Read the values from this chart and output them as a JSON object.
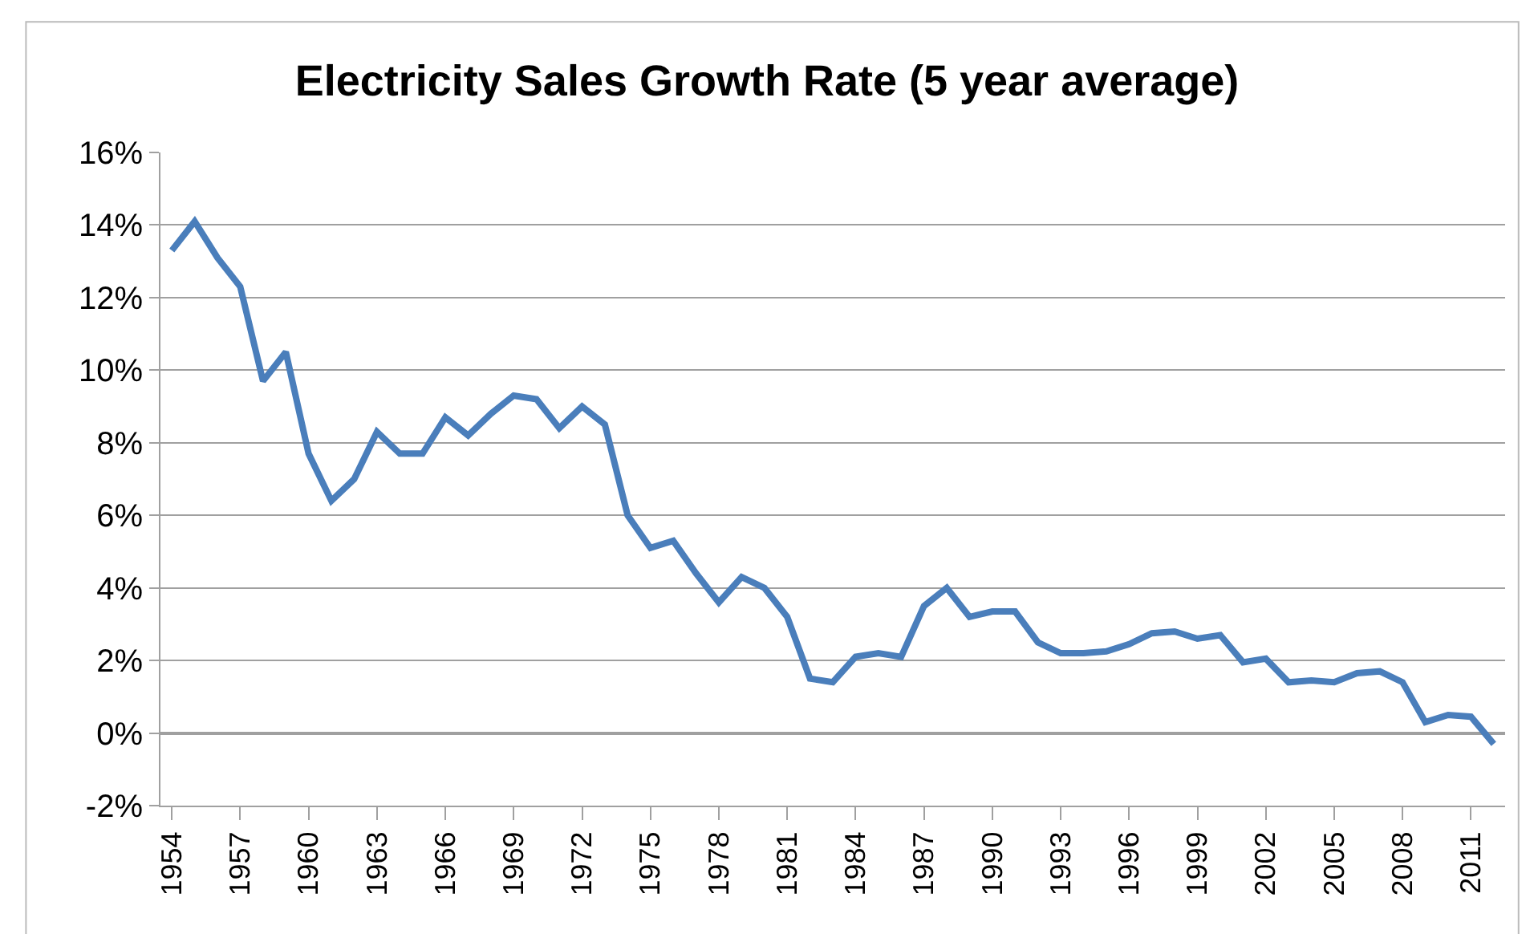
{
  "chart_data": {
    "type": "line",
    "title": "Electricity Sales Growth Rate (5 year average)",
    "categories": [
      "1954",
      null,
      null,
      "1957",
      null,
      null,
      "1960",
      null,
      null,
      "1963",
      null,
      null,
      "1966",
      null,
      null,
      "1969",
      null,
      null,
      "1972",
      null,
      null,
      "1975",
      null,
      null,
      "1978",
      null,
      null,
      "1981",
      null,
      null,
      "1984",
      null,
      null,
      "1987",
      null,
      null,
      "1990",
      null,
      null,
      "1993",
      null,
      null,
      "1996",
      null,
      null,
      "1999",
      null,
      null,
      "2002",
      null,
      null,
      "2005",
      null,
      null,
      "2008",
      null,
      null,
      "2011",
      null
    ],
    "series": [
      {
        "color": "#4a7ebb",
        "values": [
          13.3,
          14.1,
          13.1,
          12.3,
          9.7,
          10.5,
          7.7,
          6.4,
          7.0,
          8.3,
          7.7,
          7.7,
          8.7,
          8.2,
          8.8,
          9.3,
          9.2,
          8.4,
          9.0,
          8.5,
          6.0,
          5.1,
          5.3,
          4.4,
          3.6,
          4.3,
          4.0,
          3.2,
          1.5,
          1.4,
          2.1,
          2.2,
          2.1,
          3.5,
          4.0,
          3.2,
          3.35,
          3.35,
          2.5,
          2.2,
          2.2,
          2.25,
          2.45,
          2.75,
          2.8,
          2.6,
          2.7,
          1.95,
          2.05,
          1.4,
          1.45,
          1.4,
          1.65,
          1.7,
          1.4,
          0.3,
          0.5,
          0.45,
          -0.3
        ]
      }
    ],
    "ylim": [
      -2,
      16
    ],
    "yticks": [
      {
        "value": -2,
        "label": "-2%"
      },
      {
        "value": 0,
        "label": "0%"
      },
      {
        "value": 2,
        "label": "2%"
      },
      {
        "value": 4,
        "label": "4%"
      },
      {
        "value": 6,
        "label": "6%"
      },
      {
        "value": 8,
        "label": "8%"
      },
      {
        "value": 10,
        "label": "10%"
      },
      {
        "value": 12,
        "label": "12%"
      },
      {
        "value": 14,
        "label": "14%"
      },
      {
        "value": 16,
        "label": "16%"
      }
    ],
    "grid": "y",
    "legend": false,
    "marker": "none",
    "line_style": "solid"
  }
}
